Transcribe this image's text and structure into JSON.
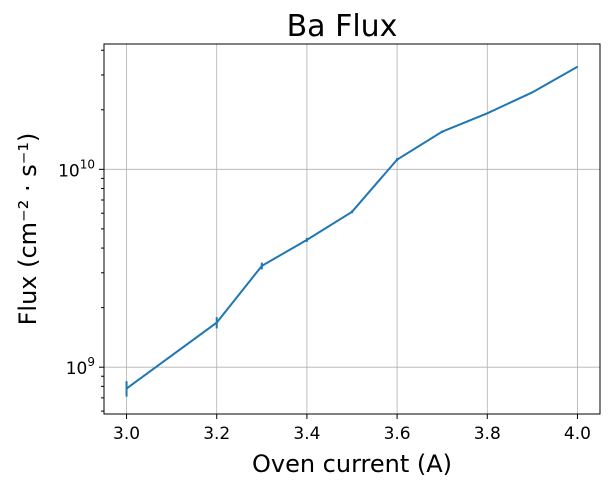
{
  "chart_data": {
    "type": "line",
    "title": "Ba Flux",
    "xlabel": "Oven current (A)",
    "ylabel": "Flux (cm⁻² · s⁻¹)",
    "yscale": "log",
    "xlim": [
      2.95,
      4.05
    ],
    "ylim": [
      580000000.0,
      43000000000.0
    ],
    "grid": true,
    "x_ticks": [
      3.0,
      3.2,
      3.4,
      3.6,
      3.8,
      4.0
    ],
    "x_tick_labels": [
      "3.0",
      "3.2",
      "3.4",
      "3.6",
      "3.8",
      "4.0"
    ],
    "y_ticks": [
      1000000000.0,
      10000000000.0
    ],
    "y_tick_labels": [
      {
        "base": "10",
        "exp": "9"
      },
      {
        "base": "10",
        "exp": "10"
      }
    ],
    "series": [
      {
        "color": "#1f77b4",
        "x": [
          3.0,
          3.2,
          3.3,
          3.4,
          3.5,
          3.6,
          3.7,
          3.8,
          3.9,
          4.0
        ],
        "y": [
          780000000.0,
          1680000000.0,
          3250000000.0,
          4400000000.0,
          6100000000.0,
          11200000000.0,
          15500000000.0,
          19200000000.0,
          24500000000.0,
          33000000000.0
        ],
        "yerr": [
          70000000.0,
          110000000.0,
          130000000.0,
          100000000.0,
          100000000.0,
          200000000.0,
          200000000.0,
          100000000.0,
          100000000.0,
          100000000.0
        ]
      }
    ]
  }
}
